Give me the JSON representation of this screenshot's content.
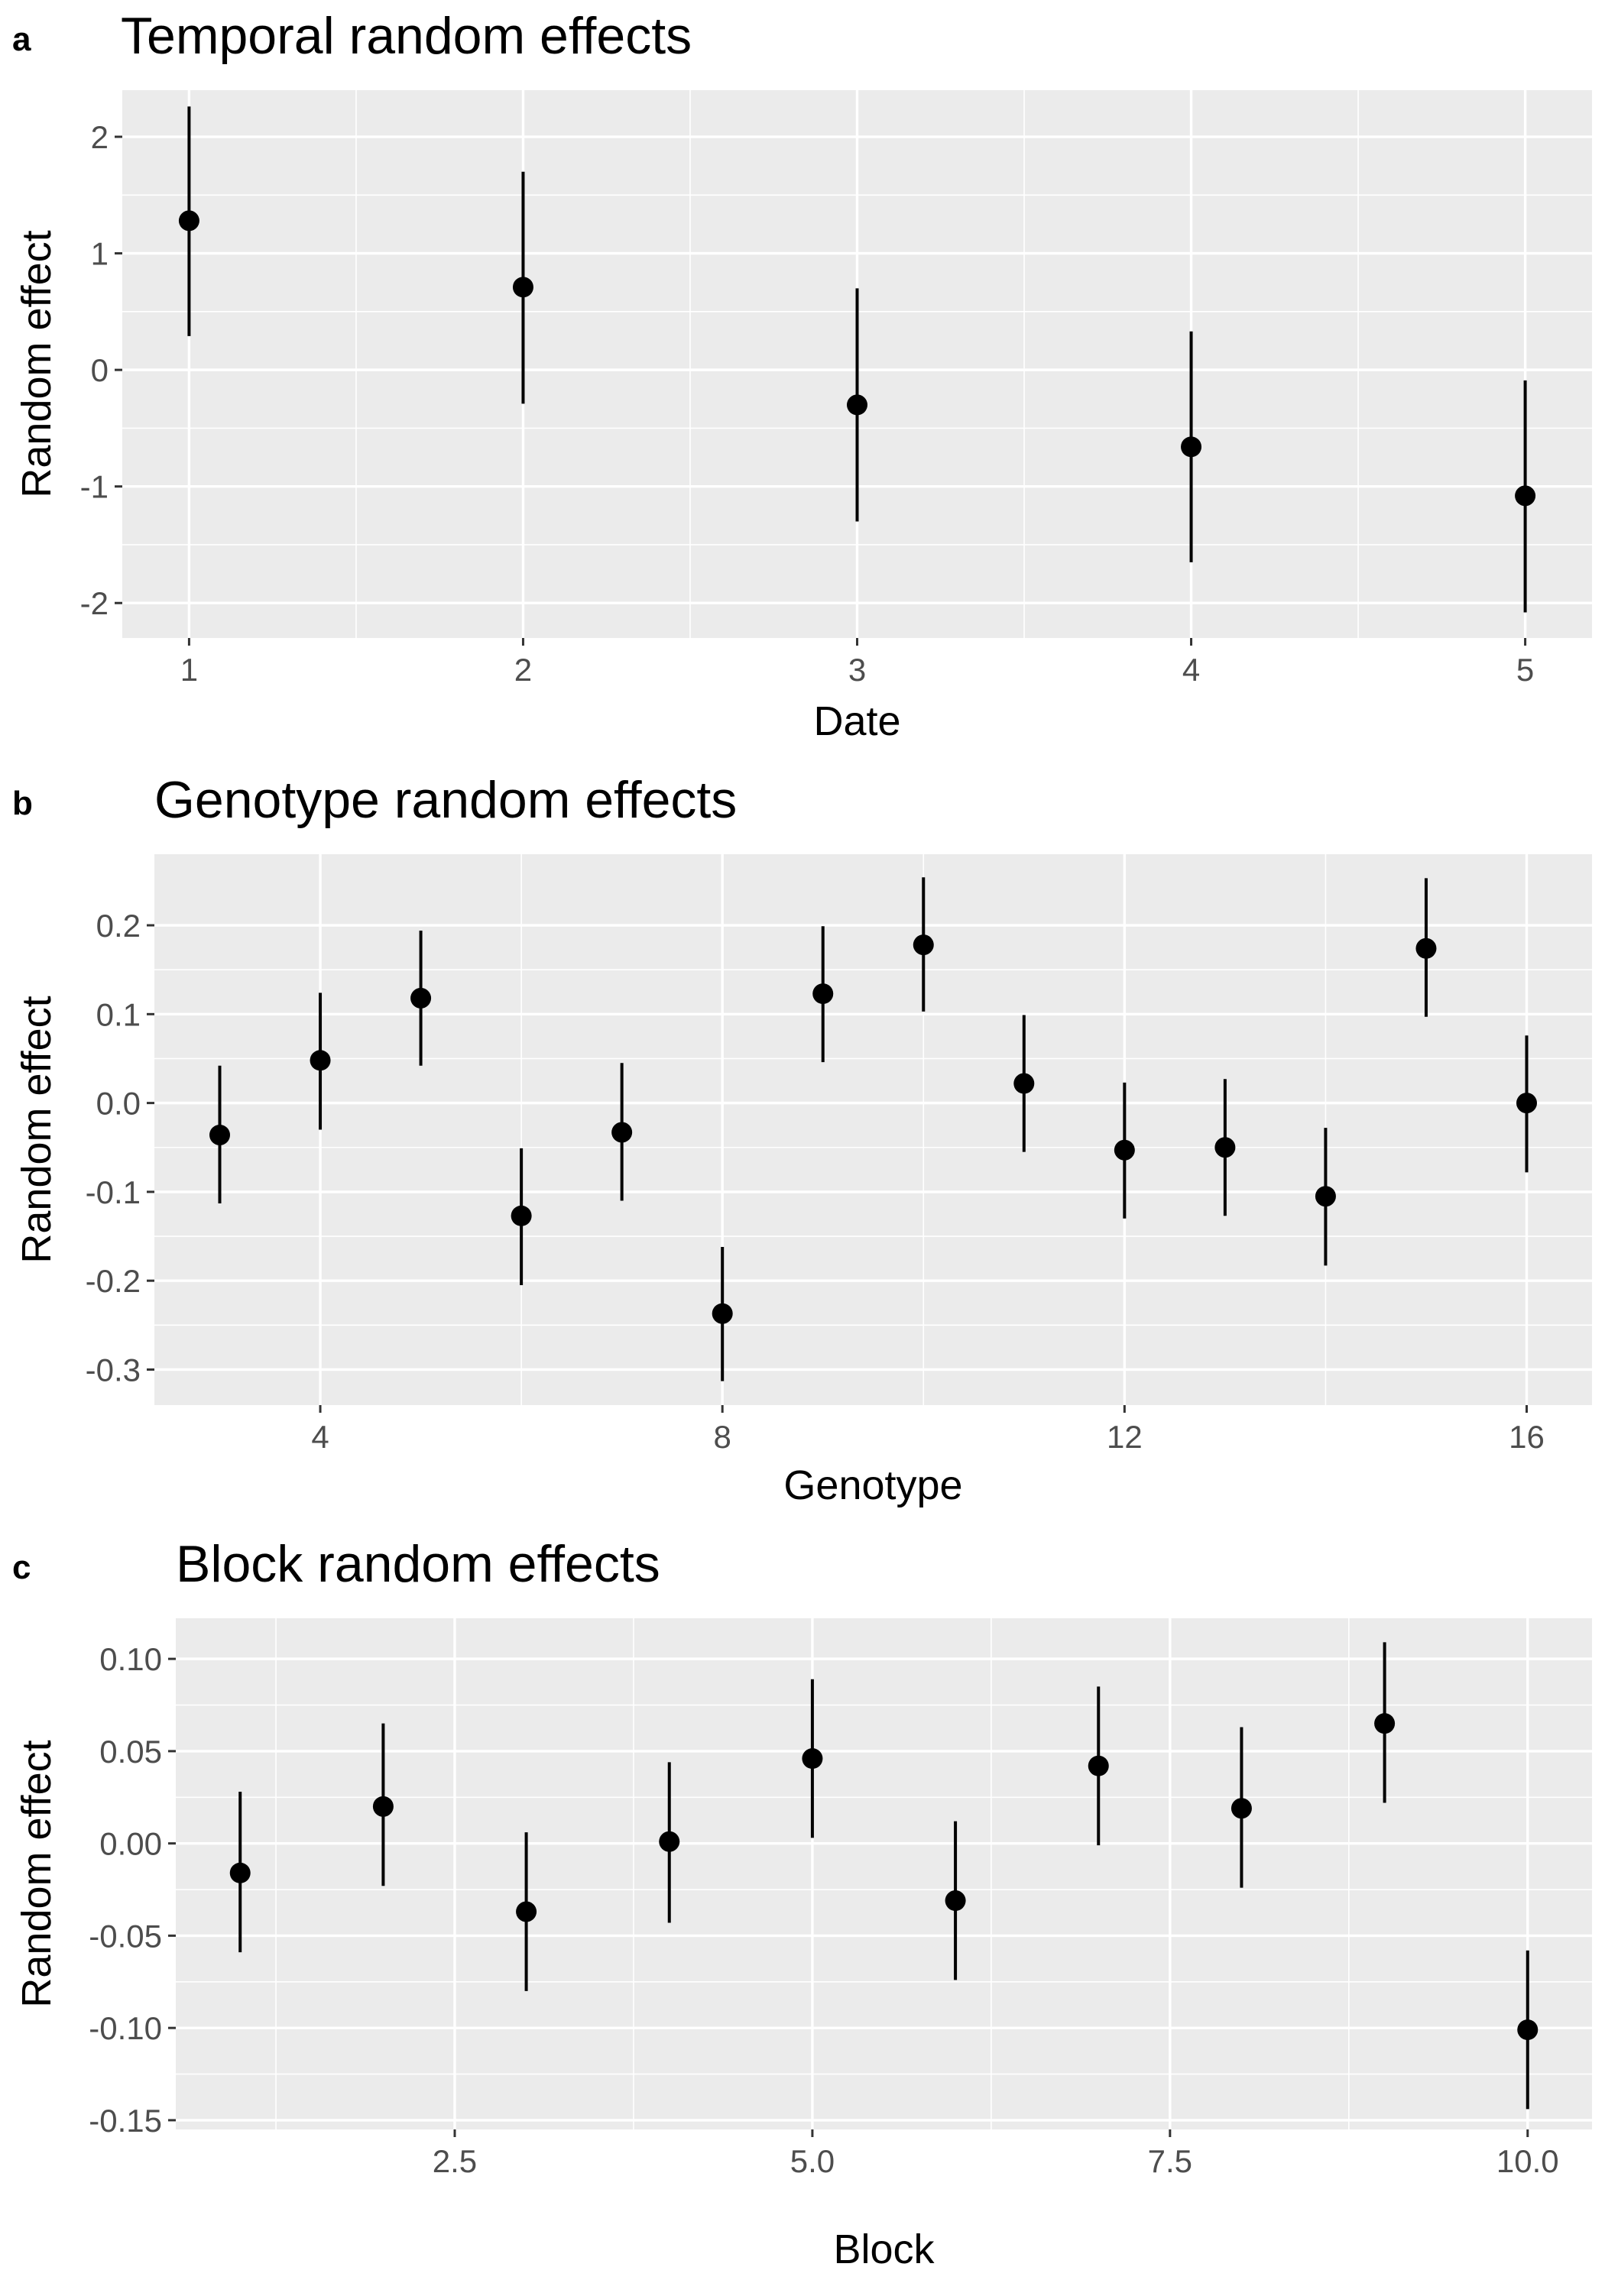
{
  "chart_data": [
    {
      "type": "scatter",
      "tag": "a",
      "title": "Temporal random effects",
      "xlabel": "Date",
      "ylabel": "Random effect",
      "xlim": [
        0.8,
        5.2
      ],
      "ylim": [
        -2.3,
        2.4
      ],
      "xticks": [
        {
          "value": 1,
          "label": "1"
        },
        {
          "value": 2,
          "label": "2"
        },
        {
          "value": 3,
          "label": "3"
        },
        {
          "value": 4,
          "label": "4"
        },
        {
          "value": 5,
          "label": "5"
        }
      ],
      "xminor": [
        1.5,
        2.5,
        3.5,
        4.5
      ],
      "yticks": [
        {
          "value": -2,
          "label": "-2"
        },
        {
          "value": -1,
          "label": "-1"
        },
        {
          "value": 0,
          "label": "0"
        },
        {
          "value": 1,
          "label": "1"
        },
        {
          "value": 2,
          "label": "2"
        }
      ],
      "yminor": [
        -1.5,
        -0.5,
        0.5,
        1.5
      ],
      "grid": true,
      "points": [
        {
          "x": 1,
          "y": 1.28,
          "lower": 0.29,
          "upper": 2.26
        },
        {
          "x": 2,
          "y": 0.71,
          "lower": -0.29,
          "upper": 1.7
        },
        {
          "x": 3,
          "y": -0.3,
          "lower": -1.3,
          "upper": 0.7
        },
        {
          "x": 4,
          "y": -0.66,
          "lower": -1.65,
          "upper": 0.33
        },
        {
          "x": 5,
          "y": -1.08,
          "lower": -2.08,
          "upper": -0.09
        }
      ]
    },
    {
      "type": "scatter",
      "tag": "b",
      "title": "Genotype random effects",
      "xlabel": "Genotype",
      "ylabel": "Random effect",
      "xlim": [
        2.35,
        16.65
      ],
      "ylim": [
        -0.34,
        0.28
      ],
      "xticks": [
        {
          "value": 4,
          "label": "4"
        },
        {
          "value": 8,
          "label": "8"
        },
        {
          "value": 12,
          "label": "12"
        },
        {
          "value": 16,
          "label": "16"
        }
      ],
      "xminor": [
        6,
        10,
        14
      ],
      "yticks": [
        {
          "value": -0.3,
          "label": "-0.3"
        },
        {
          "value": -0.2,
          "label": "-0.2"
        },
        {
          "value": -0.1,
          "label": "-0.1"
        },
        {
          "value": 0.0,
          "label": "0.0"
        },
        {
          "value": 0.1,
          "label": "0.1"
        },
        {
          "value": 0.2,
          "label": "0.2"
        }
      ],
      "yminor": [
        -0.25,
        -0.15,
        -0.05,
        0.05,
        0.15
      ],
      "grid": true,
      "points": [
        {
          "x": 3,
          "y": -0.036,
          "lower": -0.113,
          "upper": 0.042
        },
        {
          "x": 4,
          "y": 0.048,
          "lower": -0.03,
          "upper": 0.124
        },
        {
          "x": 5,
          "y": 0.118,
          "lower": 0.042,
          "upper": 0.194
        },
        {
          "x": 6,
          "y": -0.127,
          "lower": -0.205,
          "upper": -0.051
        },
        {
          "x": 7,
          "y": -0.033,
          "lower": -0.11,
          "upper": 0.045
        },
        {
          "x": 8,
          "y": -0.237,
          "lower": -0.313,
          "upper": -0.162
        },
        {
          "x": 9,
          "y": 0.123,
          "lower": 0.046,
          "upper": 0.199
        },
        {
          "x": 10,
          "y": 0.178,
          "lower": 0.103,
          "upper": 0.254
        },
        {
          "x": 11,
          "y": 0.022,
          "lower": -0.055,
          "upper": 0.099
        },
        {
          "x": 12,
          "y": -0.053,
          "lower": -0.13,
          "upper": 0.023
        },
        {
          "x": 13,
          "y": -0.05,
          "lower": -0.127,
          "upper": 0.027
        },
        {
          "x": 14,
          "y": -0.105,
          "lower": -0.183,
          "upper": -0.028
        },
        {
          "x": 15,
          "y": 0.174,
          "lower": 0.097,
          "upper": 0.253
        },
        {
          "x": 16,
          "y": 0.0,
          "lower": -0.078,
          "upper": 0.076
        }
      ]
    },
    {
      "type": "scatter",
      "tag": "c",
      "title": "Block random effects",
      "xlabel": "Block",
      "ylabel": "Random effect",
      "xlim": [
        0.55,
        10.45
      ],
      "ylim": [
        -0.155,
        0.122
      ],
      "xticks": [
        {
          "value": 2.5,
          "label": "2.5"
        },
        {
          "value": 5.0,
          "label": "5.0"
        },
        {
          "value": 7.5,
          "label": "7.5"
        },
        {
          "value": 10.0,
          "label": "10.0"
        }
      ],
      "xminor": [
        1.25,
        3.75,
        6.25,
        8.75
      ],
      "yticks": [
        {
          "value": -0.15,
          "label": "-0.15"
        },
        {
          "value": -0.1,
          "label": "-0.10"
        },
        {
          "value": -0.05,
          "label": "-0.05"
        },
        {
          "value": 0.0,
          "label": "0.00"
        },
        {
          "value": 0.05,
          "label": "0.05"
        },
        {
          "value": 0.1,
          "label": "0.10"
        }
      ],
      "yminor": [
        -0.125,
        -0.075,
        -0.025,
        0.025,
        0.075
      ],
      "grid": true,
      "points": [
        {
          "x": 1,
          "y": -0.016,
          "lower": -0.059,
          "upper": 0.028
        },
        {
          "x": 2,
          "y": 0.02,
          "lower": -0.023,
          "upper": 0.065
        },
        {
          "x": 3,
          "y": -0.037,
          "lower": -0.08,
          "upper": 0.006
        },
        {
          "x": 4,
          "y": 0.001,
          "lower": -0.043,
          "upper": 0.044
        },
        {
          "x": 5,
          "y": 0.046,
          "lower": 0.003,
          "upper": 0.089
        },
        {
          "x": 6,
          "y": -0.031,
          "lower": -0.074,
          "upper": 0.012
        },
        {
          "x": 7,
          "y": 0.042,
          "lower": -0.001,
          "upper": 0.085
        },
        {
          "x": 8,
          "y": 0.019,
          "lower": -0.024,
          "upper": 0.063
        },
        {
          "x": 9,
          "y": 0.065,
          "lower": 0.022,
          "upper": 0.109
        },
        {
          "x": 10,
          "y": -0.101,
          "lower": -0.144,
          "upper": -0.058
        }
      ]
    }
  ]
}
